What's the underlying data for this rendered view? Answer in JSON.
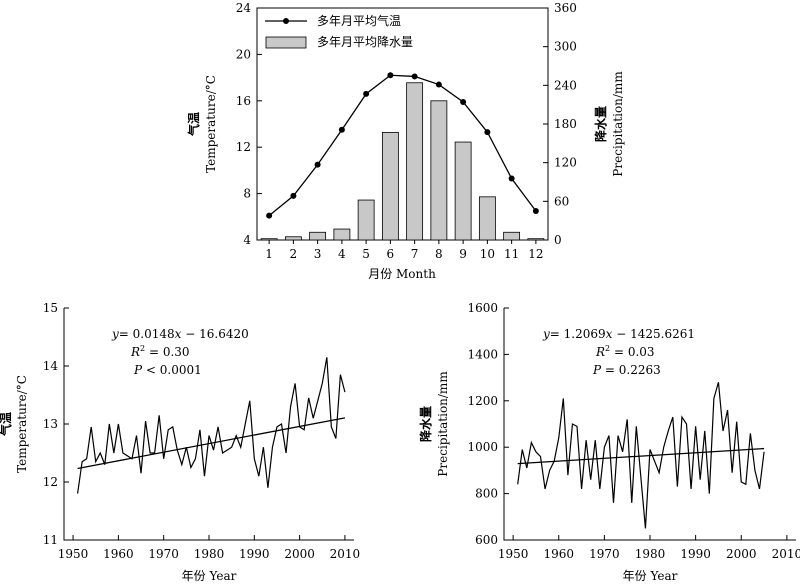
{
  "chart_data": [
    {
      "type": "bar",
      "categories": [
        "1",
        "2",
        "3",
        "4",
        "5",
        "6",
        "7",
        "8",
        "9",
        "10",
        "11",
        "12"
      ],
      "xlabel": "月份 Month",
      "ylabel_left": [
        "气温",
        "Temperature/°C"
      ],
      "ylabel_right": [
        "降水量",
        "Precipitation/mm"
      ],
      "ylim_left": [
        4,
        24
      ],
      "yticks_left": [
        "4",
        "8",
        "12",
        "16",
        "20",
        "24"
      ],
      "ylim_right": [
        0,
        360
      ],
      "yticks_right": [
        "0",
        "60",
        "120",
        "180",
        "240",
        "300",
        "360"
      ],
      "legend_placement": "top-left",
      "series": [
        {
          "name": "多年月平均气温",
          "kind": "line",
          "axis": "left",
          "values": [
            6.1,
            7.8,
            10.5,
            13.5,
            16.6,
            18.2,
            18.1,
            17.4,
            15.9,
            13.3,
            9.3,
            6.5
          ]
        },
        {
          "name": "多年月平均降水量",
          "kind": "bar",
          "axis": "right",
          "values": [
            2,
            5,
            12,
            17,
            62,
            167,
            244,
            216,
            152,
            67,
            12,
            2
          ]
        }
      ]
    },
    {
      "type": "line",
      "xlabel": "年份 Year",
      "ylabel": [
        "气温",
        "Temperature/°C"
      ],
      "xlim": [
        1948,
        2012
      ],
      "xticks": [
        "1950",
        "1960",
        "1970",
        "1980",
        "1990",
        "2000",
        "2010"
      ],
      "ylim": [
        11,
        15
      ],
      "yticks": [
        "11",
        "12",
        "13",
        "14",
        "15"
      ],
      "annotation": {
        "eq": "= 0.0148",
        "eq_b": " − 16.6420",
        "r2": " = 0.30",
        "p": " < 0.0001"
      },
      "trend": {
        "slope": 0.0148,
        "intercept": -16.642
      },
      "series": [
        {
          "x_start": 1951,
          "values": [
            11.8,
            12.35,
            12.4,
            12.95,
            12.35,
            12.5,
            12.3,
            13.0,
            12.5,
            13.0,
            12.5,
            12.45,
            12.4,
            12.8,
            12.15,
            13.05,
            12.5,
            12.5,
            13.15,
            12.4,
            12.9,
            12.95,
            12.55,
            12.3,
            12.6,
            12.25,
            12.4,
            12.9,
            12.1,
            12.8,
            12.55,
            12.95,
            12.5,
            12.55,
            12.6,
            12.8,
            12.6,
            13.0,
            13.4,
            12.4,
            12.1,
            12.6,
            11.9,
            12.6,
            12.95,
            13.0,
            12.5,
            13.3,
            13.7,
            12.95,
            12.9,
            13.45,
            13.1,
            13.4,
            13.7,
            14.15,
            12.95,
            12.75,
            13.85,
            13.55
          ]
        }
      ]
    },
    {
      "type": "line",
      "xlabel": "年份 Year",
      "ylabel": [
        "降水量",
        "Precipitation/mm"
      ],
      "xlim": [
        1948,
        2012
      ],
      "xticks": [
        "1950",
        "1960",
        "1970",
        "1980",
        "1990",
        "2000",
        "2010"
      ],
      "ylim": [
        600,
        1600
      ],
      "yticks": [
        "600",
        "800",
        "1000",
        "1200",
        "1400",
        "1600"
      ],
      "annotation": {
        "eq": "= 1.2069",
        "eq_b": " − 1425.6261",
        "r2": " = 0.03",
        "p": " = 0.2263"
      },
      "trend": {
        "slope": 1.2069,
        "intercept": -1425.6261
      },
      "series": [
        {
          "x_start": 1951,
          "values": [
            840,
            990,
            910,
            1020,
            980,
            960,
            820,
            900,
            940,
            1040,
            1210,
            880,
            1100,
            1090,
            820,
            1030,
            860,
            1030,
            820,
            1000,
            1050,
            760,
            1050,
            980,
            1120,
            760,
            1090,
            870,
            650,
            990,
            940,
            890,
            1000,
            1070,
            1130,
            830,
            1130,
            1100,
            820,
            1090,
            860,
            1070,
            800,
            1210,
            1280,
            1070,
            1160,
            890,
            1110,
            850,
            840,
            1060,
            900,
            820,
            980
          ]
        }
      ]
    }
  ]
}
